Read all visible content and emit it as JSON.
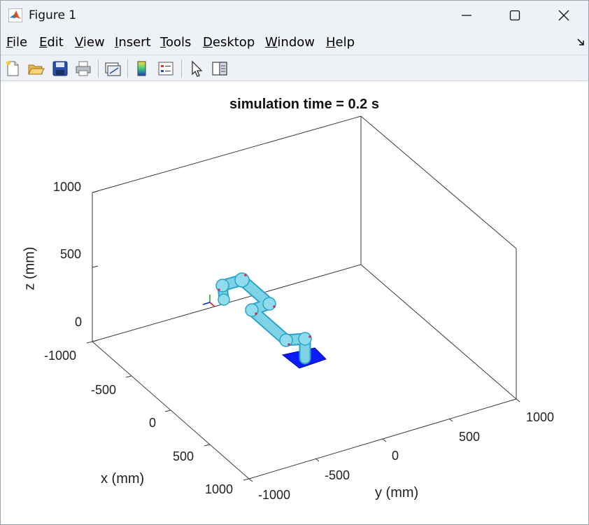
{
  "window": {
    "title": "Figure 1"
  },
  "menu": {
    "items": [
      {
        "label": "File",
        "key": "F",
        "rest": "ile"
      },
      {
        "label": "Edit",
        "key": "E",
        "rest": "dit"
      },
      {
        "label": "View",
        "key": "V",
        "rest": "iew"
      },
      {
        "label": "Insert",
        "key": "I",
        "rest": "nsert"
      },
      {
        "label": "Tools",
        "key": "T",
        "rest": "ools"
      },
      {
        "label": "Desktop",
        "key": "D",
        "rest": "esktop"
      },
      {
        "label": "Window",
        "key": "W",
        "rest": "indow"
      },
      {
        "label": "Help",
        "key": "H",
        "rest": "elp"
      }
    ]
  },
  "toolbar": {
    "icons": [
      "new-figure-icon",
      "open-file-icon",
      "save-icon",
      "print-icon",
      "link-plot-icon",
      "colorbar-icon",
      "legend-icon",
      "pointer-icon",
      "property-editor-icon"
    ]
  },
  "plot": {
    "title": "simulation time = 0.2 s",
    "xlabel": "x (mm)",
    "ylabel": "y (mm)",
    "zlabel": "z (mm)",
    "x_ticks": [
      "-1000",
      "-500",
      "0",
      "500",
      "1000"
    ],
    "y_ticks": [
      "-1000",
      "-500",
      "0",
      "500",
      "1000"
    ],
    "z_ticks": [
      "0",
      "500",
      "1000"
    ],
    "robot_color": "#7fd3e6",
    "base_color": "#0a1cff"
  }
}
